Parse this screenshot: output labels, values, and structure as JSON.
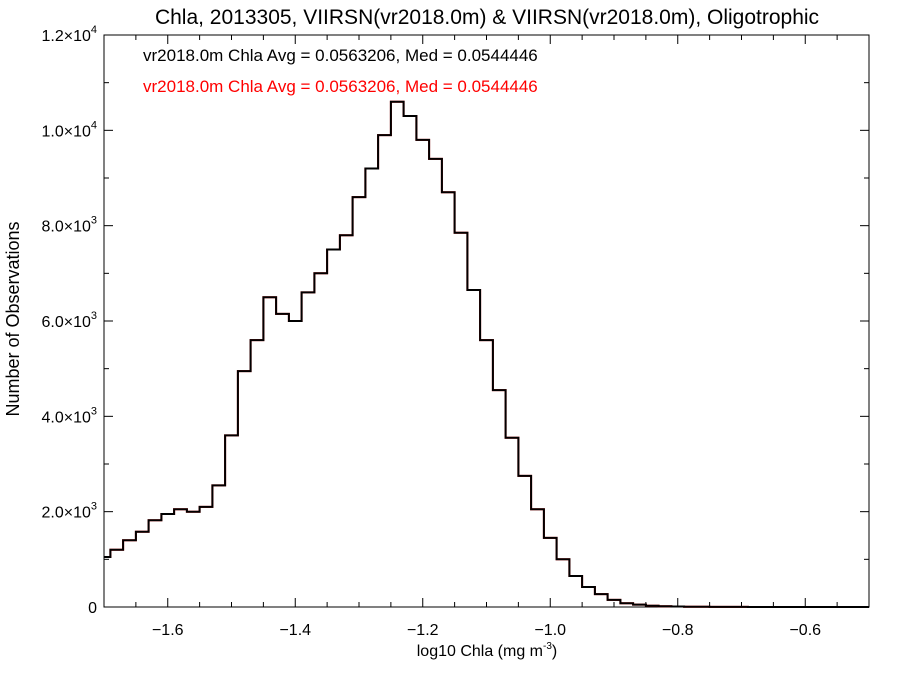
{
  "chart_data": {
    "type": "line",
    "title": "Chla, 2013305, VIIRSN(vr2018.0m) & VIIRSN(vr2018.0m), Oligotrophic",
    "xlabel": "log10 Chla (mg m",
    "xlabel_sup": "-3",
    "xlabel_close": ")",
    "ylabel": "Number of Observations",
    "xlim": [
      -1.7,
      -0.5
    ],
    "ylim": [
      0,
      12000
    ],
    "grid": false,
    "x_ticks": [
      -1.6,
      -1.4,
      -1.2,
      -1.0,
      -0.8,
      -0.6
    ],
    "x_tick_labels": [
      "−1.6",
      "−1.4",
      "−1.2",
      "−1.0",
      "−0.8",
      "−0.6"
    ],
    "y_ticks": [
      0,
      2000,
      4000,
      6000,
      8000,
      10000,
      12000
    ],
    "y_tick_labels": [
      {
        "base": "0",
        "exp": ""
      },
      {
        "base": "2.0×10",
        "exp": "3"
      },
      {
        "base": "4.0×10",
        "exp": "3"
      },
      {
        "base": "6.0×10",
        "exp": "3"
      },
      {
        "base": "8.0×10",
        "exp": "3"
      },
      {
        "base": "1.0×10",
        "exp": "4"
      },
      {
        "base": "1.2×10",
        "exp": "4"
      }
    ],
    "annotations": [
      {
        "text": "vr2018.0m Chla Avg = 0.0563206, Med = 0.0544446",
        "color": "#000000"
      },
      {
        "text": "vr2018.0m Chla Avg = 0.0563206, Med = 0.0544446",
        "color": "#ff0000"
      }
    ],
    "series": [
      {
        "color": "#ff0000",
        "x": [
          -1.7,
          -1.68,
          -1.66,
          -1.64,
          -1.62,
          -1.6,
          -1.58,
          -1.56,
          -1.54,
          -1.52,
          -1.5,
          -1.48,
          -1.46,
          -1.44,
          -1.42,
          -1.4,
          -1.38,
          -1.36,
          -1.34,
          -1.32,
          -1.3,
          -1.28,
          -1.26,
          -1.24,
          -1.22,
          -1.2,
          -1.18,
          -1.16,
          -1.14,
          -1.12,
          -1.1,
          -1.08,
          -1.06,
          -1.04,
          -1.02,
          -1.0,
          -0.98,
          -0.96,
          -0.94,
          -0.92,
          -0.9,
          -0.88,
          -0.86,
          -0.84,
          -0.82,
          -0.8,
          -0.78,
          -0.76,
          -0.74,
          -0.72,
          -0.7,
          -0.68,
          -0.66,
          -0.64,
          -0.62,
          -0.6,
          -0.58,
          -0.56,
          -0.54,
          -0.52,
          -0.5
        ],
        "y": [
          1050,
          1200,
          1400,
          1580,
          1820,
          1950,
          2050,
          2000,
          2100,
          2550,
          3600,
          4950,
          5600,
          6500,
          6150,
          6000,
          6600,
          7000,
          7500,
          7800,
          8600,
          9200,
          9900,
          10600,
          10300,
          9800,
          9400,
          8700,
          7850,
          6650,
          5600,
          4550,
          3550,
          2750,
          2050,
          1450,
          1000,
          650,
          420,
          270,
          150,
          80,
          50,
          28,
          16,
          10,
          6,
          4,
          3,
          2,
          2,
          1,
          1,
          1,
          1,
          0,
          0,
          0,
          0,
          0,
          0
        ]
      },
      {
        "color": "#000000",
        "x": [
          -1.7,
          -1.68,
          -1.66,
          -1.64,
          -1.62,
          -1.6,
          -1.58,
          -1.56,
          -1.54,
          -1.52,
          -1.5,
          -1.48,
          -1.46,
          -1.44,
          -1.42,
          -1.4,
          -1.38,
          -1.36,
          -1.34,
          -1.32,
          -1.3,
          -1.28,
          -1.26,
          -1.24,
          -1.22,
          -1.2,
          -1.18,
          -1.16,
          -1.14,
          -1.12,
          -1.1,
          -1.08,
          -1.06,
          -1.04,
          -1.02,
          -1.0,
          -0.98,
          -0.96,
          -0.94,
          -0.92,
          -0.9,
          -0.88,
          -0.86,
          -0.84,
          -0.82,
          -0.8,
          -0.78,
          -0.76,
          -0.74,
          -0.72,
          -0.7,
          -0.68,
          -0.66,
          -0.64,
          -0.62,
          -0.6,
          -0.58,
          -0.56,
          -0.54,
          -0.52,
          -0.5
        ],
        "y": [
          1050,
          1200,
          1400,
          1580,
          1820,
          1950,
          2050,
          2000,
          2100,
          2550,
          3600,
          4950,
          5600,
          6500,
          6150,
          6000,
          6600,
          7000,
          7500,
          7800,
          8600,
          9200,
          9900,
          10600,
          10300,
          9800,
          9400,
          8700,
          7850,
          6650,
          5600,
          4550,
          3550,
          2750,
          2050,
          1450,
          1000,
          650,
          420,
          270,
          150,
          80,
          50,
          28,
          16,
          10,
          6,
          4,
          3,
          2,
          2,
          1,
          1,
          1,
          1,
          0,
          0,
          0,
          0,
          0,
          0
        ]
      }
    ]
  }
}
